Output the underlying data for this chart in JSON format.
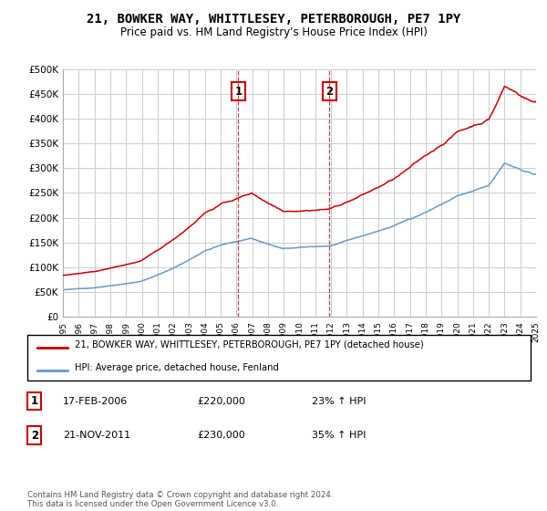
{
  "title": "21, BOWKER WAY, WHITTLESEY, PETERBOROUGH, PE7 1PY",
  "subtitle": "Price paid vs. HM Land Registry's House Price Index (HPI)",
  "ylabel_ticks": [
    "£0",
    "£50K",
    "£100K",
    "£150K",
    "£200K",
    "£250K",
    "£300K",
    "£350K",
    "£400K",
    "£450K",
    "£500K"
  ],
  "ytick_values": [
    0,
    50000,
    100000,
    150000,
    200000,
    250000,
    300000,
    350000,
    400000,
    450000,
    500000
  ],
  "xmin": 1995,
  "xmax": 2025,
  "ymin": 0,
  "ymax": 500000,
  "transaction1_x": 2006.12,
  "transaction1_label": "1",
  "transaction1_date": "17-FEB-2006",
  "transaction1_price": "£220,000",
  "transaction1_hpi": "23% ↑ HPI",
  "transaction2_x": 2011.9,
  "transaction2_label": "2",
  "transaction2_date": "21-NOV-2011",
  "transaction2_price": "£230,000",
  "transaction2_hpi": "35% ↑ HPI",
  "red_line_color": "#cc0000",
  "blue_line_color": "#6699cc",
  "grid_color": "#cccccc",
  "background_color": "#ffffff",
  "legend_label_red": "21, BOWKER WAY, WHITTLESEY, PETERBOROUGH, PE7 1PY (detached house)",
  "legend_label_blue": "HPI: Average price, detached house, Fenland",
  "footer": "Contains HM Land Registry data © Crown copyright and database right 2024.\nThis data is licensed under the Open Government Licence v3.0."
}
